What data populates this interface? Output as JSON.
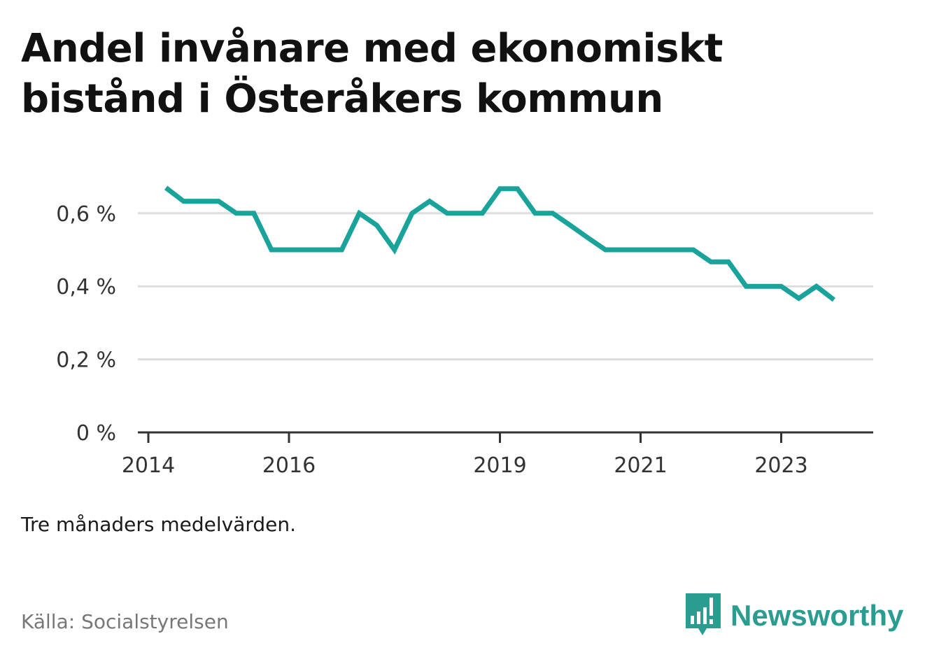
{
  "title": "Andel invånare med ekonomiskt bistånd i Österåkers kommun",
  "note": "Tre månaders medelvärden.",
  "source": "Källa: Socialstyrelsen",
  "brand": {
    "name": "Newsworthy",
    "color": "#2a9d90",
    "icon": "bar-chart-speech-bubble-icon"
  },
  "chart_data": {
    "type": "line",
    "title": "Andel invånare med ekonomiskt bistånd i Österåkers kommun",
    "xlabel": "",
    "ylabel": "",
    "ylim": [
      0,
      0.7
    ],
    "y_ticks": [
      0,
      0.2,
      0.4,
      0.6
    ],
    "y_tick_labels": [
      "0 %",
      "0,2 %",
      "0,4 %",
      "0,6 %"
    ],
    "x_ticks": [
      "2014",
      "2016",
      "2019",
      "2021",
      "2023"
    ],
    "grid": true,
    "line_color": "#19a39a",
    "series": [
      {
        "x": [
          "2014-04",
          "2014-07",
          "2014-10",
          "2015-01",
          "2015-04",
          "2015-07",
          "2015-10",
          "2016-01",
          "2016-04",
          "2016-07",
          "2016-10",
          "2017-01",
          "2017-04",
          "2017-07",
          "2017-10",
          "2018-01",
          "2018-04",
          "2018-07",
          "2018-10",
          "2019-01",
          "2019-04",
          "2019-07",
          "2019-10",
          "2020-01",
          "2020-04",
          "2020-07",
          "2020-10",
          "2021-01",
          "2021-04",
          "2021-07",
          "2021-10",
          "2022-01",
          "2022-04",
          "2022-07",
          "2022-10",
          "2023-01",
          "2023-04",
          "2023-07",
          "2023-10"
        ],
        "values": [
          0.67,
          0.633,
          0.633,
          0.633,
          0.6,
          0.6,
          0.5,
          0.5,
          0.5,
          0.5,
          0.5,
          0.6,
          0.567,
          0.5,
          0.6,
          0.633,
          0.6,
          0.6,
          0.6,
          0.667,
          0.667,
          0.6,
          0.6,
          0.567,
          0.533,
          0.5,
          0.5,
          0.5,
          0.5,
          0.5,
          0.5,
          0.467,
          0.467,
          0.4,
          0.4,
          0.4,
          0.367,
          0.4,
          0.363
        ]
      }
    ]
  }
}
